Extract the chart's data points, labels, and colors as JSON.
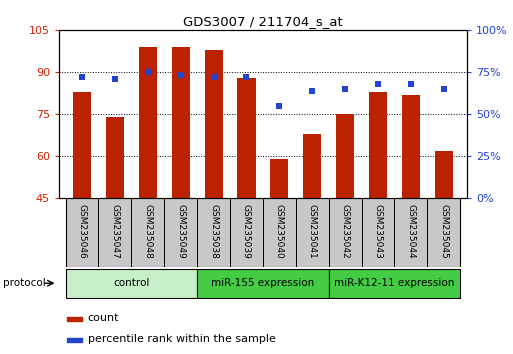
{
  "title": "GDS3007 / 211704_s_at",
  "categories": [
    "GSM235046",
    "GSM235047",
    "GSM235048",
    "GSM235049",
    "GSM235038",
    "GSM235039",
    "GSM235040",
    "GSM235041",
    "GSM235042",
    "GSM235043",
    "GSM235044",
    "GSM235045"
  ],
  "bar_values": [
    83,
    74,
    99,
    99,
    98,
    88,
    59,
    68,
    75,
    83,
    82,
    62
  ],
  "dot_values": [
    72,
    71,
    75,
    73,
    72,
    72,
    55,
    64,
    65,
    68,
    68,
    65
  ],
  "ylim_left": [
    45,
    105
  ],
  "ylim_right": [
    0,
    100
  ],
  "yticks_left": [
    45,
    60,
    75,
    90,
    105
  ],
  "yticks_right": [
    0,
    25,
    50,
    75,
    100
  ],
  "yticklabels_right": [
    "0%",
    "25%",
    "50%",
    "75%",
    "100%"
  ],
  "bar_color": "#bb2200",
  "dot_color": "#2244cc",
  "left_tick_color": "#cc2200",
  "right_tick_color": "#2244cc",
  "label_cell_color": "#c8c8c8",
  "group_colors": [
    "#c8f0c8",
    "#44cc44",
    "#44cc44"
  ],
  "group_labels": [
    "control",
    "miR-155 expression",
    "miR-K12-11 expression"
  ],
  "group_ranges": [
    [
      0,
      3
    ],
    [
      4,
      7
    ],
    [
      8,
      11
    ]
  ],
  "legend_count_label": "count",
  "legend_pct_label": "percentile rank within the sample",
  "protocol_label": "protocol",
  "fig_width": 5.13,
  "fig_height": 3.54,
  "bar_width": 0.55
}
